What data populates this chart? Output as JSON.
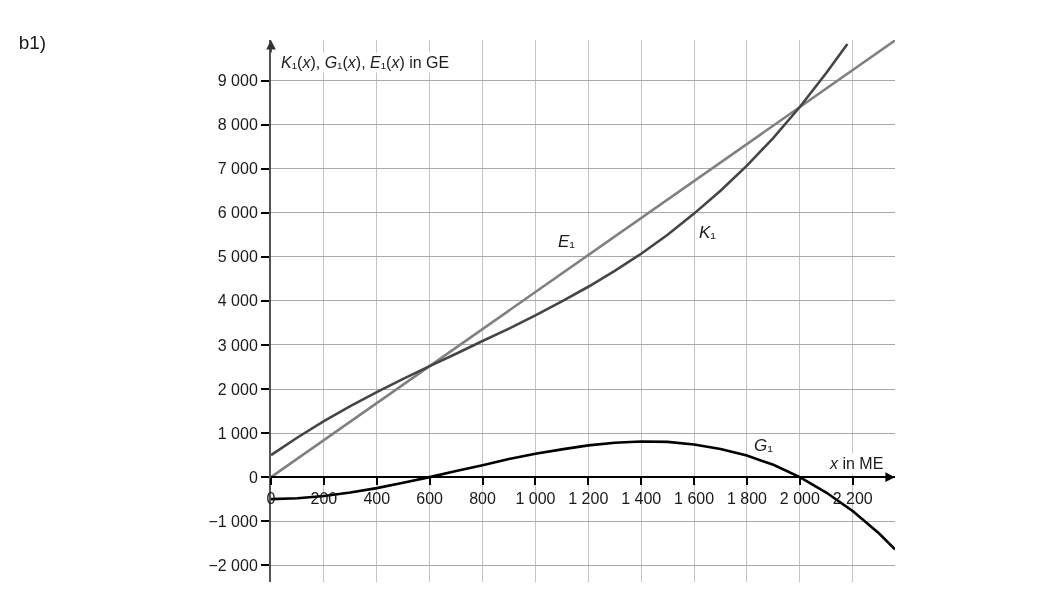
{
  "chart_data": {
    "type": "line",
    "title": "b1)",
    "xlabel": "x in ME",
    "ylabel": "K₁(x), G₁(x), E₁(x) in GE",
    "xlim": [
      0,
      2360
    ],
    "ylim": [
      -2380,
      9920
    ],
    "xticks": [
      0,
      200,
      400,
      600,
      800,
      {
        "value": 1000,
        "label": "1 000"
      },
      {
        "value": 1200,
        "label": "1 200"
      },
      {
        "value": 1400,
        "label": "1 400"
      },
      {
        "value": 1600,
        "label": "1 600"
      },
      {
        "value": 1800,
        "label": "1 800"
      },
      {
        "value": 2000,
        "label": "2 000"
      },
      {
        "value": 2200,
        "label": "2 200"
      }
    ],
    "yticks": [
      {
        "value": -2000,
        "label": "−2 000"
      },
      {
        "value": -1000,
        "label": "−1 000"
      },
      0,
      {
        "value": 1000,
        "label": "1 000"
      },
      {
        "value": 2000,
        "label": "2 000"
      },
      {
        "value": 3000,
        "label": "3 000"
      },
      {
        "value": 4000,
        "label": "4 000"
      },
      {
        "value": 5000,
        "label": "5 000"
      },
      {
        "value": 6000,
        "label": "6 000"
      },
      {
        "value": 7000,
        "label": "7 000"
      },
      {
        "value": 8000,
        "label": "8 000"
      },
      {
        "value": 9000,
        "label": "9 000"
      }
    ],
    "grid": true,
    "legend": false,
    "marker": "none",
    "line_style": "solid",
    "series": [
      {
        "name": "E₁",
        "color": "#808080",
        "x": [
          0,
          1000,
          2360
        ],
        "values": [
          0,
          4200,
          9910
        ]
      },
      {
        "name": "K₁",
        "color": "#454545",
        "x": [
          0,
          100,
          200,
          300,
          400,
          500,
          600,
          700,
          800,
          900,
          1000,
          1100,
          1200,
          1300,
          1400,
          1500,
          1600,
          1700,
          1800,
          1900,
          2000,
          2100,
          2180
        ],
        "values": [
          500,
          900,
          1270,
          1610,
          1930,
          2230,
          2520,
          2800,
          3090,
          3370,
          3670,
          3990,
          4320,
          4680,
          5070,
          5500,
          5980,
          6500,
          7070,
          7700,
          8400,
          9170,
          9830
        ]
      },
      {
        "name": "G₁",
        "color": "#000000",
        "x": [
          0,
          100,
          200,
          300,
          400,
          500,
          600,
          700,
          800,
          900,
          1000,
          1100,
          1200,
          1300,
          1400,
          1500,
          1600,
          1700,
          1800,
          1900,
          2000,
          2100,
          2200,
          2300,
          2360
        ],
        "values": [
          -500,
          -480,
          -430,
          -350,
          -250,
          -130,
          0,
          140,
          270,
          410,
          530,
          630,
          720,
          780,
          810,
          800,
          740,
          640,
          490,
          280,
          0,
          -350,
          -770,
          -1280,
          -1640
        ]
      }
    ]
  }
}
